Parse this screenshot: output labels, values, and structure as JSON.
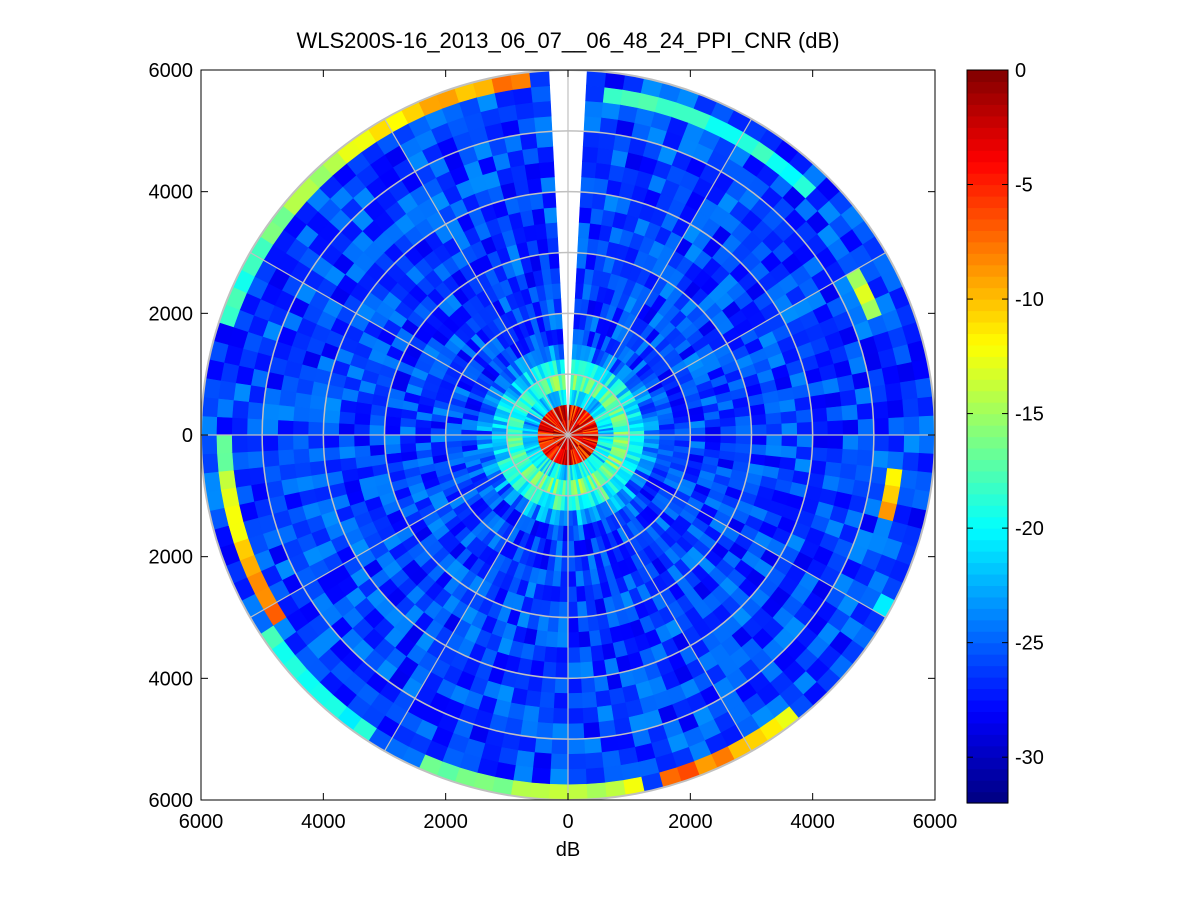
{
  "chart_data": {
    "type": "heatmap",
    "subtype": "polar PPI scan",
    "title": "WLS200S-16_2013_06_07__06_48_24_PPI_CNR (dB)",
    "xlabel": "dB",
    "ylabel": "",
    "xlim": [
      -6000,
      6000
    ],
    "ylim": [
      -6000,
      6000
    ],
    "x_ticks": [
      -6000,
      -4000,
      -2000,
      0,
      2000,
      4000,
      6000
    ],
    "x_tick_labels": [
      "6000",
      "4000",
      "2000",
      "0",
      "2000",
      "4000",
      "6000"
    ],
    "y_ticks": [
      6000,
      4000,
      2000,
      0,
      -2000,
      -4000,
      -6000
    ],
    "y_tick_labels": [
      "6000",
      "4000",
      "2000",
      "0",
      "2000",
      "4000",
      "6000"
    ],
    "range_rings": [
      1000,
      2000,
      3000,
      4000,
      5000,
      6000
    ],
    "spokes_deg": [
      0,
      30,
      60,
      90,
      120,
      150,
      180,
      210,
      240,
      270,
      300,
      330
    ],
    "max_range": 6000,
    "grid": true,
    "colormap": "jet",
    "clim": [
      -32,
      0
    ],
    "colorbar_ticks": [
      0,
      -5,
      -10,
      -15,
      -20,
      -25,
      -30
    ],
    "colorbar_tick_labels": [
      "0",
      "-5",
      "-10",
      "-15",
      "-20",
      "-25",
      "-30"
    ],
    "missing_sector_deg": [
      -4,
      4
    ],
    "field": {
      "background_cnr": -26,
      "near_field_ring": {
        "range": [
          300,
          1500
        ],
        "peak_cnr": -17
      },
      "center_echo": {
        "range": [
          0,
          450
        ],
        "cnr": -4
      },
      "edge_echo_segments": [
        {
          "az_start": 287,
          "az_end": 355,
          "cnr_start": -20,
          "cnr_end": -7,
          "range": [
            5700,
            5900
          ]
        },
        {
          "az_start": 236,
          "az_end": 270,
          "cnr_start": -7,
          "cnr_end": -17,
          "range": [
            5600,
            5850
          ]
        },
        {
          "az_start": 212,
          "az_end": 236,
          "cnr_start": -20,
          "cnr_end": -19,
          "range": [
            5700,
            5900
          ]
        },
        {
          "az_start": 168,
          "az_end": 205,
          "cnr_start": -13,
          "cnr_end": -17,
          "range": [
            5750,
            5950
          ]
        },
        {
          "az_start": 142,
          "az_end": 164,
          "cnr_start": -12,
          "cnr_end": -6,
          "range": [
            5750,
            5950
          ]
        },
        {
          "az_start": 5,
          "az_end": 46,
          "cnr_start": -18,
          "cnr_end": -19,
          "range": [
            5600,
            5800
          ]
        },
        {
          "az_start": 60,
          "az_end": 68,
          "cnr_start": -14,
          "cnr_end": -14,
          "range": [
            5300,
            5500
          ]
        },
        {
          "az_start": 95,
          "az_end": 105,
          "cnr_start": -13,
          "cnr_end": -8,
          "range": [
            5300,
            5500
          ]
        },
        {
          "az_start": 116,
          "az_end": 121,
          "cnr_start": -20,
          "cnr_end": -20,
          "range": [
            5700,
            5900
          ]
        }
      ]
    }
  }
}
